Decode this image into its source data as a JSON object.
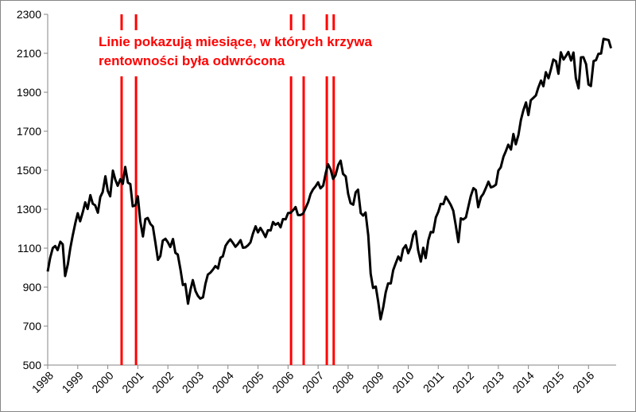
{
  "chart_data": {
    "type": "line",
    "color": "#000000",
    "grid": false,
    "annotation": [
      "Linie pokazują miesiące, w których krzywa",
      "rentowności była odwrócona"
    ],
    "annotation_color": "#ff0000",
    "inversions": [
      2000.46,
      2000.94,
      2006.1,
      2006.52,
      2007.29,
      2007.52
    ],
    "inversion_color": "#ff0000",
    "xlim": [
      1998,
      2016.92
    ],
    "xticks": [
      1998,
      1999,
      2000,
      2001,
      2002,
      2003,
      2004,
      2005,
      2006,
      2007,
      2008,
      2009,
      2010,
      2011,
      2012,
      2013,
      2014,
      2015,
      2016
    ],
    "ylim": [
      500,
      2300
    ],
    "yticks": [
      500,
      700,
      900,
      1100,
      1300,
      1500,
      1700,
      1900,
      2100,
      2300
    ],
    "x": [
      1998,
      1998.08,
      1998.17,
      1998.25,
      1998.33,
      1998.42,
      1998.5,
      1998.58,
      1998.67,
      1998.75,
      1998.83,
      1998.92,
      1999,
      1999.08,
      1999.17,
      1999.25,
      1999.33,
      1999.42,
      1999.5,
      1999.58,
      1999.67,
      1999.75,
      1999.83,
      1999.92,
      2000,
      2000.08,
      2000.17,
      2000.25,
      2000.33,
      2000.42,
      2000.5,
      2000.58,
      2000.67,
      2000.75,
      2000.83,
      2000.92,
      2001,
      2001.08,
      2001.17,
      2001.25,
      2001.33,
      2001.42,
      2001.5,
      2001.58,
      2001.67,
      2001.75,
      2001.83,
      2001.92,
      2002,
      2002.08,
      2002.17,
      2002.25,
      2002.33,
      2002.42,
      2002.5,
      2002.58,
      2002.67,
      2002.75,
      2002.83,
      2002.92,
      2003,
      2003.08,
      2003.17,
      2003.25,
      2003.33,
      2003.42,
      2003.5,
      2003.58,
      2003.67,
      2003.75,
      2003.83,
      2003.92,
      2004,
      2004.08,
      2004.17,
      2004.25,
      2004.33,
      2004.42,
      2004.5,
      2004.58,
      2004.67,
      2004.75,
      2004.83,
      2004.92,
      2005,
      2005.08,
      2005.17,
      2005.25,
      2005.33,
      2005.42,
      2005.5,
      2005.58,
      2005.67,
      2005.75,
      2005.83,
      2005.92,
      2006,
      2006.08,
      2006.17,
      2006.25,
      2006.33,
      2006.42,
      2006.5,
      2006.58,
      2006.67,
      2006.75,
      2006.83,
      2006.92,
      2007,
      2007.08,
      2007.17,
      2007.25,
      2007.33,
      2007.42,
      2007.5,
      2007.58,
      2007.67,
      2007.75,
      2007.83,
      2007.92,
      2008,
      2008.08,
      2008.17,
      2008.25,
      2008.33,
      2008.42,
      2008.5,
      2008.58,
      2008.67,
      2008.75,
      2008.83,
      2008.92,
      2009,
      2009.08,
      2009.17,
      2009.25,
      2009.33,
      2009.42,
      2009.5,
      2009.58,
      2009.67,
      2009.75,
      2009.83,
      2009.92,
      2010,
      2010.08,
      2010.17,
      2010.25,
      2010.33,
      2010.42,
      2010.5,
      2010.58,
      2010.67,
      2010.75,
      2010.83,
      2010.92,
      2011,
      2011.08,
      2011.17,
      2011.25,
      2011.33,
      2011.42,
      2011.5,
      2011.58,
      2011.67,
      2011.75,
      2011.83,
      2011.92,
      2012,
      2012.08,
      2012.17,
      2012.25,
      2012.33,
      2012.42,
      2012.5,
      2012.58,
      2012.67,
      2012.75,
      2012.83,
      2012.92,
      2013,
      2013.08,
      2013.17,
      2013.25,
      2013.33,
      2013.42,
      2013.5,
      2013.58,
      2013.67,
      2013.75,
      2013.83,
      2013.92,
      2014,
      2014.08,
      2014.17,
      2014.25,
      2014.33,
      2014.42,
      2014.5,
      2014.58,
      2014.67,
      2014.75,
      2014.83,
      2014.92,
      2015,
      2015.08,
      2015.17,
      2015.25,
      2015.33,
      2015.42,
      2015.5,
      2015.58,
      2015.67,
      2015.75,
      2015.83,
      2015.92,
      2016,
      2016.08,
      2016.17,
      2016.25,
      2016.33,
      2016.42,
      2016.5,
      2016.58,
      2016.67,
      2016.75
    ],
    "values": [
      980,
      1049,
      1101,
      1111,
      1090,
      1133,
      1120,
      957,
      1017,
      1098,
      1163,
      1229,
      1279,
      1238,
      1286,
      1335,
      1301,
      1372,
      1328,
      1320,
      1282,
      1362,
      1388,
      1469,
      1394,
      1366,
      1498,
      1452,
      1420,
      1454,
      1430,
      1517,
      1436,
      1429,
      1315,
      1320,
      1366,
      1240,
      1160,
      1249,
      1255,
      1224,
      1211,
      1133,
      1040,
      1060,
      1139,
      1148,
      1130,
      1106,
      1147,
      1076,
      1067,
      990,
      911,
      916,
      815,
      885,
      936,
      880,
      855,
      841,
      848,
      917,
      964,
      975,
      990,
      1008,
      996,
      1051,
      1058,
      1112,
      1131,
      1145,
      1126,
      1107,
      1121,
      1141,
      1102,
      1104,
      1115,
      1130,
      1174,
      1212,
      1181,
      1204,
      1181,
      1157,
      1192,
      1191,
      1234,
      1220,
      1229,
      1207,
      1249,
      1248,
      1280,
      1281,
      1295,
      1311,
      1270,
      1270,
      1277,
      1304,
      1336,
      1378,
      1401,
      1418,
      1438,
      1407,
      1421,
      1482,
      1531,
      1503,
      1455,
      1474,
      1527,
      1549,
      1481,
      1468,
      1379,
      1331,
      1323,
      1386,
      1400,
      1280,
      1267,
      1283,
      1165,
      969,
      896,
      903,
      826,
      735,
      798,
      873,
      919,
      919,
      987,
      1021,
      1057,
      1036,
      1096,
      1115,
      1074,
      1104,
      1169,
      1187,
      1089,
      1031,
      1102,
      1049,
      1141,
      1183,
      1181,
      1258,
      1286,
      1327,
      1326,
      1364,
      1345,
      1321,
      1292,
      1219,
      1131,
      1253,
      1247,
      1258,
      1312,
      1366,
      1408,
      1398,
      1310,
      1362,
      1379,
      1407,
      1441,
      1412,
      1416,
      1426,
      1498,
      1515,
      1569,
      1598,
      1631,
      1606,
      1686,
      1633,
      1682,
      1757,
      1806,
      1848,
      1783,
      1859,
      1872,
      1884,
      1924,
      1960,
      1931,
      2003,
      1972,
      2018,
      2068,
      2059,
      1995,
      2105,
      2068,
      2086,
      2107,
      2063,
      2104,
      1972,
      1920,
      2079,
      2080,
      2044,
      1940,
      1932,
      2060,
      2065,
      2097,
      2099,
      2174,
      2171,
      2168,
      2126
    ]
  }
}
